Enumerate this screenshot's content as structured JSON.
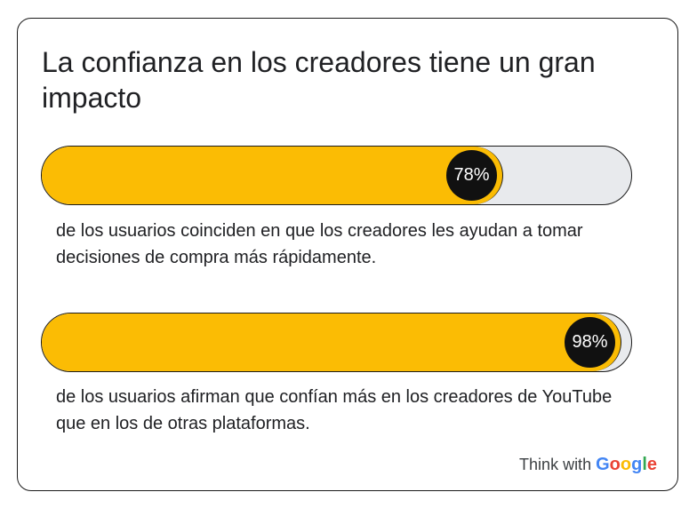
{
  "title": "La confianza en los creadores tiene un gran impacto",
  "colors": {
    "fill": "#fbbc04",
    "track": "#e8eaed",
    "badge": "#111111",
    "outline": "#1a1a1a"
  },
  "chart_data": {
    "type": "bar",
    "orientation": "horizontal",
    "title": "La confianza en los creadores tiene un gran impacto",
    "xlim": [
      0,
      100
    ],
    "unit": "%",
    "series": [
      {
        "label": "78%",
        "value": 78,
        "description": "de los usuarios coinciden en que los creadores les ayudan a tomar decisiones de compra más rápidamente."
      },
      {
        "label": "98%",
        "value": 98,
        "description": "de los usuarios afirman que confían más en los creadores de YouTube que en los de otras plataformas."
      }
    ]
  },
  "brand": {
    "prefix": "Think with",
    "google_letters": [
      "G",
      "o",
      "o",
      "g",
      "l",
      "e"
    ],
    "google_colors": [
      "#4285f4",
      "#ea4335",
      "#fbbc04",
      "#4285f4",
      "#34a853",
      "#ea4335"
    ]
  }
}
